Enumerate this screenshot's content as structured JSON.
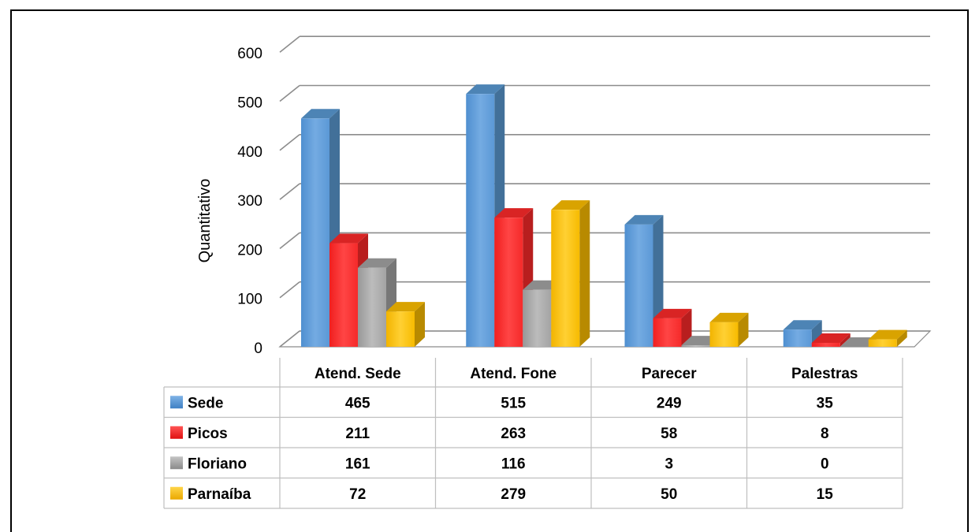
{
  "chart_data": {
    "type": "bar",
    "style": "3d-clustered-column-with-data-table",
    "ylabel": "Quantitativo",
    "xlabel": "",
    "ylim": [
      0,
      600
    ],
    "yticks": [
      "0",
      "100",
      "200",
      "300",
      "400",
      "500",
      "600"
    ],
    "grid": true,
    "legend": "data-table",
    "categories": [
      "Atend. Sede",
      "Atend. Fone",
      "Parecer",
      "Palestras"
    ],
    "series": [
      {
        "name": "Sede",
        "color": "#5B9BD5",
        "values": [
          465,
          515,
          249,
          35
        ],
        "labels": [
          "465",
          "515",
          "249",
          "35"
        ]
      },
      {
        "name": "Picos",
        "color": "#FF2A2A",
        "values": [
          211,
          263,
          58,
          8
        ],
        "labels": [
          "211",
          "263",
          "58",
          "8"
        ]
      },
      {
        "name": "Floriano",
        "color": "#A5A5A5",
        "values": [
          161,
          116,
          3,
          0
        ],
        "labels": [
          "161",
          "116",
          "3",
          "0"
        ]
      },
      {
        "name": "Parnaíba",
        "color": "#FFC000",
        "values": [
          72,
          279,
          50,
          15
        ],
        "labels": [
          "72",
          "279",
          "50",
          "15"
        ]
      }
    ]
  }
}
